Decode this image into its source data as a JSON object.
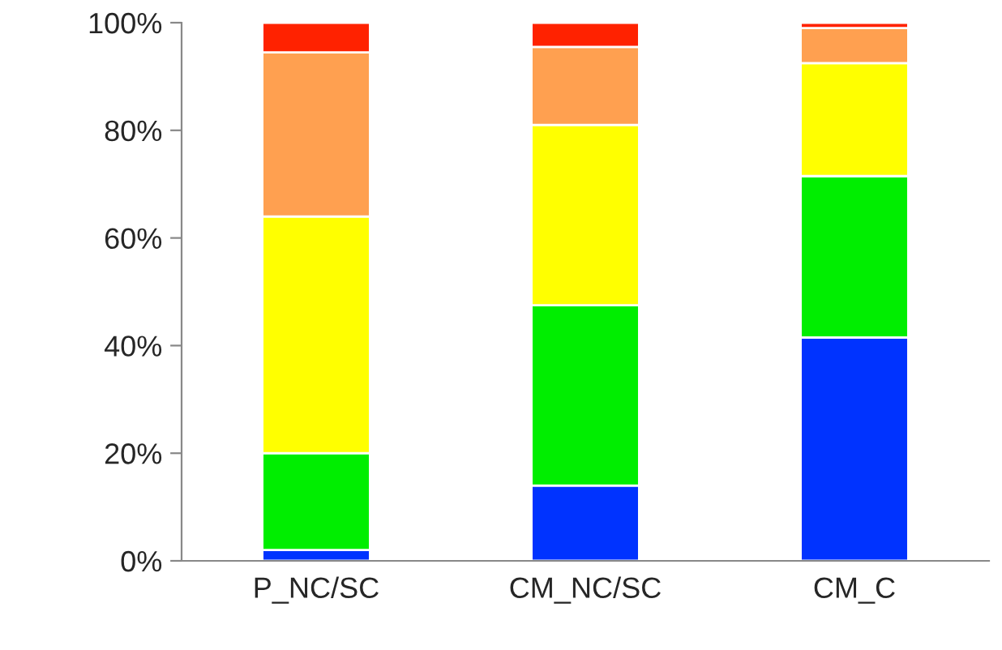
{
  "chart_data": {
    "type": "bar",
    "stacked": true,
    "categories": [
      "P_NC/SC",
      "CM_NC/SC",
      "CM_C"
    ],
    "series": [
      {
        "color": "#0033ff",
        "values": [
          2,
          14,
          41.5
        ]
      },
      {
        "color": "#00ee00",
        "values": [
          18,
          33.5,
          30
        ]
      },
      {
        "color": "#ffff00",
        "values": [
          44,
          33.5,
          21
        ]
      },
      {
        "color": "#ffa050",
        "values": [
          30.5,
          14.5,
          6.5
        ]
      },
      {
        "color": "#ff2200",
        "values": [
          5.5,
          4.5,
          1
        ]
      }
    ],
    "ylim": [
      0,
      100
    ],
    "yticks": [
      {
        "value": 0,
        "label": "0%"
      },
      {
        "value": 20,
        "label": "20%"
      },
      {
        "value": 40,
        "label": "40%"
      },
      {
        "value": 60,
        "label": "60%"
      },
      {
        "value": 80,
        "label": "80%"
      },
      {
        "value": 100,
        "label": "100%"
      }
    ],
    "grid": false,
    "legend": false
  }
}
